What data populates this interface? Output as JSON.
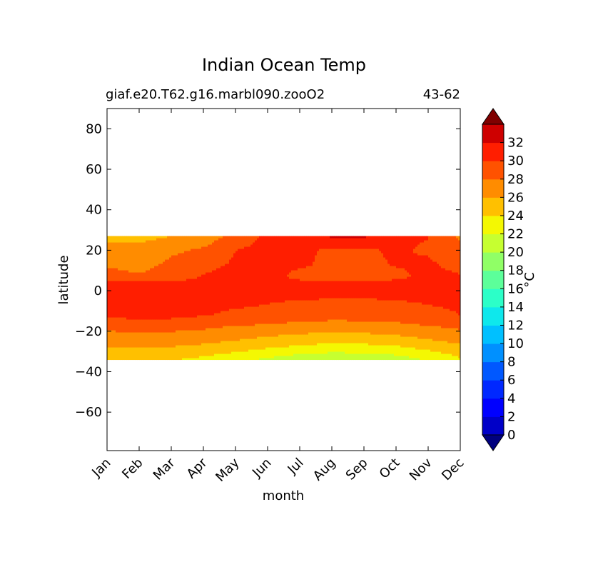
{
  "chart_data": {
    "type": "heatmap",
    "title": "Indian Ocean Temp",
    "subtitle_left": "giaf.e20.T62.g16.marbl090.zooO2",
    "subtitle_right": "43-62",
    "xlabel": "month",
    "ylabel": "latitude",
    "x_categories": [
      "Jan",
      "Feb",
      "Mar",
      "Apr",
      "May",
      "Jun",
      "Jul",
      "Aug",
      "Sep",
      "Oct",
      "Nov",
      "Dec"
    ],
    "y_ticks": [
      80,
      60,
      40,
      20,
      0,
      -20,
      -40,
      -60
    ],
    "ylim": [
      -79,
      90
    ],
    "data_lat_range": [
      -34,
      27
    ],
    "colorbar": {
      "label": "°C",
      "tick_labels": [
        "32",
        "30",
        "28",
        "26",
        "24",
        "22",
        "20",
        "18",
        "16",
        "14",
        "12",
        "10",
        "8",
        "6",
        "4",
        "2",
        "0"
      ],
      "levels": [
        -2,
        0,
        2,
        4,
        6,
        8,
        10,
        12,
        14,
        16,
        18,
        20,
        22,
        24,
        26,
        28,
        30,
        32,
        34
      ],
      "colors": [
        "#00007f",
        "#0000c8",
        "#0000ff",
        "#0028ff",
        "#0058ff",
        "#0090ff",
        "#00c0ff",
        "#0ee8ec",
        "#2cffc8",
        "#5cff9a",
        "#90ff66",
        "#c6ff30",
        "#f4f802",
        "#ffc000",
        "#ff8c00",
        "#ff5200",
        "#ff1e00",
        "#ce0000",
        "#800000"
      ],
      "extend": "both"
    },
    "series": [
      {
        "lat": 27,
        "values": [
          23.5,
          23.5,
          24.0,
          25.0,
          26.5,
          28.5,
          29.0,
          30.5,
          30.5,
          29.0,
          28.0,
          25.5
        ]
      },
      {
        "lat": 25,
        "values": [
          23.8,
          23.8,
          24.3,
          25.3,
          27.0,
          28.6,
          29.0,
          29.0,
          29.0,
          29.0,
          28.0,
          26.0
        ]
      },
      {
        "lat": 22,
        "values": [
          24.5,
          24.2,
          24.8,
          25.8,
          27.5,
          28.7,
          28.8,
          29.0,
          29.0,
          28.8,
          27.5,
          26.5
        ]
      },
      {
        "lat": 20,
        "values": [
          25.0,
          24.8,
          25.3,
          26.5,
          28.0,
          28.8,
          28.6,
          27.5,
          27.5,
          28.5,
          27.5,
          26.8
        ]
      },
      {
        "lat": 17,
        "values": [
          25.5,
          25.3,
          26.0,
          27.0,
          28.1,
          28.8,
          28.5,
          27.5,
          27.5,
          28.3,
          28.0,
          27.0
        ]
      },
      {
        "lat": 13,
        "values": [
          25.8,
          25.6,
          26.2,
          27.5,
          28.2,
          28.9,
          28.5,
          27.3,
          27.3,
          28.2,
          28.3,
          27.3
        ]
      },
      {
        "lat": 10,
        "values": [
          26.2,
          25.8,
          26.5,
          27.8,
          28.4,
          28.8,
          27.8,
          27.0,
          27.0,
          27.8,
          28.4,
          27.8
        ]
      },
      {
        "lat": 7,
        "values": [
          26.5,
          26.3,
          26.8,
          28.1,
          28.5,
          28.7,
          27.5,
          26.8,
          26.8,
          27.6,
          28.5,
          28.1
        ]
      },
      {
        "lat": 4,
        "values": [
          28.2,
          28.3,
          28.4,
          28.5,
          28.6,
          28.5,
          28.4,
          28.3,
          28.3,
          28.4,
          28.5,
          28.5
        ]
      },
      {
        "lat": 0,
        "values": [
          28.3,
          28.4,
          28.5,
          28.5,
          28.5,
          28.4,
          28.3,
          28.2,
          28.2,
          28.3,
          28.4,
          28.4
        ]
      },
      {
        "lat": -4,
        "values": [
          28.4,
          28.5,
          28.5,
          28.4,
          28.3,
          28.2,
          28.1,
          28.0,
          28.0,
          28.1,
          28.3,
          28.4
        ]
      },
      {
        "lat": -8,
        "values": [
          28.4,
          28.5,
          28.5,
          28.3,
          28.1,
          27.9,
          27.5,
          27.3,
          27.3,
          27.5,
          27.9,
          28.2
        ]
      },
      {
        "lat": -12,
        "values": [
          28.3,
          28.4,
          28.3,
          28.1,
          27.7,
          27.3,
          27.0,
          26.7,
          26.8,
          27.0,
          27.5,
          28.0
        ]
      },
      {
        "lat": -15,
        "values": [
          27.5,
          27.9,
          27.8,
          27.5,
          27.0,
          26.6,
          26.2,
          25.9,
          26.0,
          26.2,
          26.8,
          27.4
        ]
      },
      {
        "lat": -18,
        "values": [
          26.5,
          26.8,
          26.6,
          26.3,
          25.8,
          25.4,
          25.0,
          24.8,
          24.9,
          25.2,
          25.8,
          26.3
        ]
      },
      {
        "lat": -21,
        "values": [
          25.7,
          25.9,
          25.8,
          25.5,
          25.0,
          24.5,
          24.1,
          23.9,
          24.0,
          24.3,
          24.9,
          25.5
        ]
      },
      {
        "lat": -24,
        "values": [
          25.0,
          25.1,
          25.0,
          24.7,
          24.2,
          23.6,
          23.1,
          22.9,
          23.0,
          23.3,
          24.0,
          24.8
        ]
      },
      {
        "lat": -27,
        "values": [
          24.3,
          24.4,
          24.2,
          23.8,
          23.2,
          22.6,
          22.0,
          21.6,
          21.7,
          22.1,
          22.9,
          23.8
        ]
      },
      {
        "lat": -30,
        "values": [
          23.5,
          23.6,
          23.4,
          22.9,
          22.2,
          21.4,
          20.7,
          20.3,
          20.4,
          20.9,
          21.8,
          22.9
        ]
      },
      {
        "lat": -32,
        "values": [
          23.0,
          23.1,
          22.8,
          22.2,
          21.3,
          20.5,
          19.7,
          19.3,
          19.4,
          19.9,
          21.0,
          22.3
        ]
      },
      {
        "lat": -34,
        "values": [
          22.5,
          22.5,
          22.2,
          21.5,
          20.6,
          19.7,
          18.9,
          18.5,
          18.6,
          19.1,
          20.3,
          21.7
        ]
      }
    ]
  }
}
